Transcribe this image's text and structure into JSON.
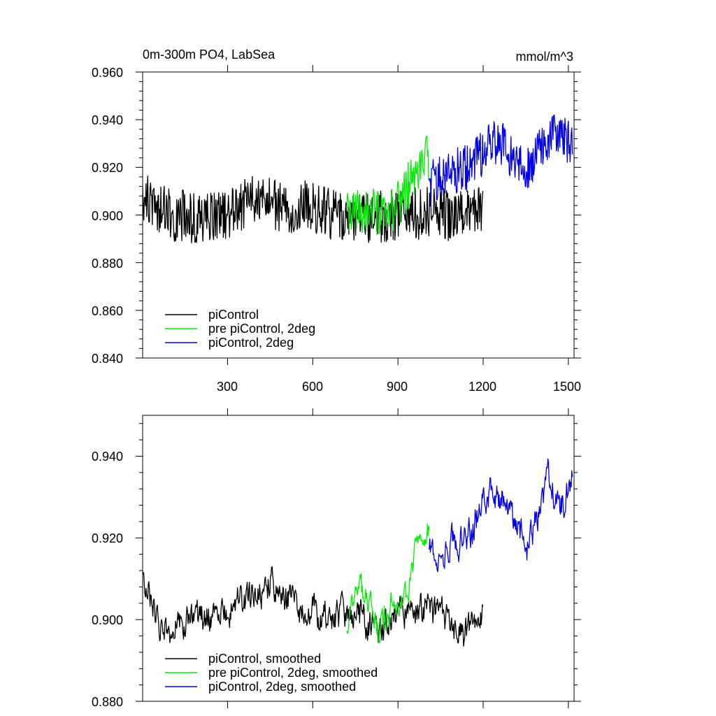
{
  "chart_data": [
    {
      "type": "line",
      "title_left": "0m-300m PO4, LabSea",
      "title_right": "mmol/m^3",
      "xlim": [
        1,
        1520
      ],
      "ylim": [
        0.84,
        0.96
      ],
      "x_ticks": [
        300,
        600,
        900,
        1200,
        1500
      ],
      "x_tick_labels": [
        "300",
        "600",
        "900",
        "1200",
        "1500"
      ],
      "y_ticks": [
        0.84,
        0.86,
        0.88,
        0.9,
        0.92,
        0.94,
        0.96
      ],
      "y_tick_labels": [
        "0.840",
        "0.860",
        "0.880",
        "0.900",
        "0.920",
        "0.940",
        "0.960"
      ],
      "legend": [
        "piControl",
        "pre piControl, 2deg",
        "piControl, 2deg"
      ],
      "legend_position": "bottom-left",
      "series": [
        {
          "name": "piControl",
          "color": "#000000",
          "x_start": 1,
          "x_end": 1200,
          "mean": 0.9025,
          "noise": 0.011,
          "anchors": [
            [
              1,
              0.908
            ],
            [
              100,
              0.9
            ],
            [
              200,
              0.899
            ],
            [
              300,
              0.901
            ],
            [
              400,
              0.906
            ],
            [
              500,
              0.903
            ],
            [
              600,
              0.904
            ],
            [
              700,
              0.898
            ],
            [
              800,
              0.899
            ],
            [
              900,
              0.9
            ],
            [
              1000,
              0.901
            ],
            [
              1100,
              0.9
            ],
            [
              1200,
              0.902
            ]
          ]
        },
        {
          "name": "pre piControl, 2deg",
          "color": "#00ee00",
          "x_start": 720,
          "x_end": 1010,
          "mean": 0.906,
          "noise": 0.01,
          "anchors": [
            [
              720,
              0.9
            ],
            [
              800,
              0.902
            ],
            [
              860,
              0.898
            ],
            [
              900,
              0.905
            ],
            [
              950,
              0.915
            ],
            [
              1010,
              0.925
            ]
          ]
        },
        {
          "name": "piControl, 2deg",
          "color": "#0000ee",
          "x_start": 1010,
          "x_end": 1515,
          "mean": 0.925,
          "noise": 0.01,
          "anchors": [
            [
              1010,
              0.912
            ],
            [
              1060,
              0.918
            ],
            [
              1150,
              0.92
            ],
            [
              1250,
              0.932
            ],
            [
              1300,
              0.925
            ],
            [
              1350,
              0.918
            ],
            [
              1400,
              0.93
            ],
            [
              1450,
              0.933
            ],
            [
              1515,
              0.93
            ]
          ]
        }
      ]
    },
    {
      "type": "line",
      "xlim": [
        1,
        1520
      ],
      "ylim": [
        0.88,
        0.95
      ],
      "x_ticks": [
        300,
        600,
        900,
        1200,
        1500
      ],
      "y_ticks": [
        0.88,
        0.9,
        0.92,
        0.94
      ],
      "y_tick_labels": [
        "0.880",
        "0.900",
        "0.920",
        "0.940"
      ],
      "legend": [
        "piControl, smoothed",
        "pre piControl, 2deg, smoothed",
        "piControl, 2deg, smoothed"
      ],
      "legend_position": "bottom-left",
      "series": [
        {
          "name": "piControl, smoothed",
          "color": "#000000",
          "x_start": 1,
          "x_end": 1200,
          "mean": 0.9025,
          "noise": 0.006,
          "anchors": [
            [
              1,
              0.912
            ],
            [
              60,
              0.898
            ],
            [
              150,
              0.899
            ],
            [
              250,
              0.901
            ],
            [
              350,
              0.904
            ],
            [
              450,
              0.909
            ],
            [
              550,
              0.903
            ],
            [
              650,
              0.9
            ],
            [
              750,
              0.901
            ],
            [
              850,
              0.898
            ],
            [
              950,
              0.903
            ],
            [
              1050,
              0.901
            ],
            [
              1130,
              0.895
            ],
            [
              1200,
              0.903
            ]
          ]
        },
        {
          "name": "pre piControl, 2deg, smoothed",
          "color": "#00ee00",
          "x_start": 720,
          "x_end": 1010,
          "mean": 0.905,
          "noise": 0.005,
          "anchors": [
            [
              720,
              0.898
            ],
            [
              760,
              0.909
            ],
            [
              830,
              0.898
            ],
            [
              880,
              0.903
            ],
            [
              930,
              0.906
            ],
            [
              970,
              0.921
            ],
            [
              1010,
              0.923
            ]
          ]
        },
        {
          "name": "piControl, 2deg, smoothed",
          "color": "#0000ee",
          "x_start": 1010,
          "x_end": 1515,
          "mean": 0.925,
          "noise": 0.006,
          "anchors": [
            [
              1010,
              0.918
            ],
            [
              1060,
              0.917
            ],
            [
              1150,
              0.921
            ],
            [
              1230,
              0.932
            ],
            [
              1300,
              0.927
            ],
            [
              1360,
              0.918
            ],
            [
              1430,
              0.935
            ],
            [
              1470,
              0.926
            ],
            [
              1515,
              0.935
            ]
          ]
        }
      ]
    }
  ]
}
